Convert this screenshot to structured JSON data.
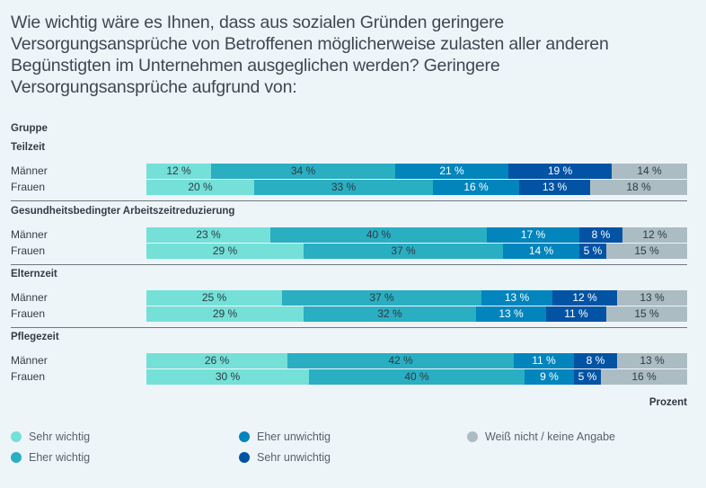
{
  "title": "Wie wichtig wäre es Ihnen, dass aus sozialen Gründen geringere Versorgungsansprüche von Betroffenen möglicherweise zulasten aller anderen Begünstigten im Unternehmen ausgeglichen werden? Geringere Versorgungsansprüche aufgrund von:",
  "chart_data": {
    "type": "bar",
    "orientation": "horizontal",
    "stacked": true,
    "normalized": true,
    "title": "Wie wichtig wäre es Ihnen, dass aus sozialen Gründen geringere Versorgungsansprüche von Betroffenen möglicherweise zulasten aller anderen Begünstigten im Unternehmen ausgeglichen werden? Geringere Versorgungsansprüche aufgrund von:",
    "group_header": "Gruppe",
    "unit_label": "Prozent",
    "value_suffix": " %",
    "xlim": [
      0,
      100
    ],
    "grid": false,
    "legend_position": "bottom",
    "series": [
      {
        "name": "Sehr wichtig",
        "color": "#74e0d8",
        "text_color": "#2e3a44"
      },
      {
        "name": "Eher wichtig",
        "color": "#2aaec2",
        "text_color": "#2e3a44"
      },
      {
        "name": "Eher unwichtig",
        "color": "#0285bd",
        "text_color": "#ffffff"
      },
      {
        "name": "Sehr unwichtig",
        "color": "#0353a4",
        "text_color": "#ffffff"
      },
      {
        "name": "Weiß nicht / keine Angabe",
        "color": "#acbcc3",
        "text_color": "#2e3a44"
      }
    ],
    "sections": [
      {
        "title": "Teilzeit",
        "rows": [
          {
            "label": "Männer",
            "values": [
              12,
              34,
              21,
              19,
              14
            ]
          },
          {
            "label": "Frauen",
            "values": [
              20,
              33,
              16,
              13,
              18
            ]
          }
        ]
      },
      {
        "title": "Gesundheitsbedingter Arbeitszeitreduzierung",
        "rows": [
          {
            "label": "Männer",
            "values": [
              23,
              40,
              17,
              8,
              12
            ]
          },
          {
            "label": "Frauen",
            "values": [
              29,
              37,
              14,
              5,
              15
            ]
          }
        ]
      },
      {
        "title": "Elternzeit",
        "rows": [
          {
            "label": "Männer",
            "values": [
              25,
              37,
              13,
              12,
              13
            ]
          },
          {
            "label": "Frauen",
            "values": [
              29,
              32,
              13,
              11,
              15
            ]
          }
        ]
      },
      {
        "title": "Pflegezeit",
        "rows": [
          {
            "label": "Männer",
            "values": [
              26,
              42,
              11,
              8,
              13
            ]
          },
          {
            "label": "Frauen",
            "values": [
              30,
              40,
              9,
              5,
              16
            ]
          }
        ]
      }
    ]
  },
  "legend": {
    "items": [
      {
        "label": "Sehr wichtig",
        "color": "#74e0d8"
      },
      {
        "label": "Eher wichtig",
        "color": "#2aaec2"
      },
      {
        "label": "Eher unwichtig",
        "color": "#0285bd"
      },
      {
        "label": "Sehr unwichtig",
        "color": "#0353a4"
      },
      {
        "label": "Weiß nicht / keine Angabe",
        "color": "#acbcc3"
      }
    ]
  }
}
